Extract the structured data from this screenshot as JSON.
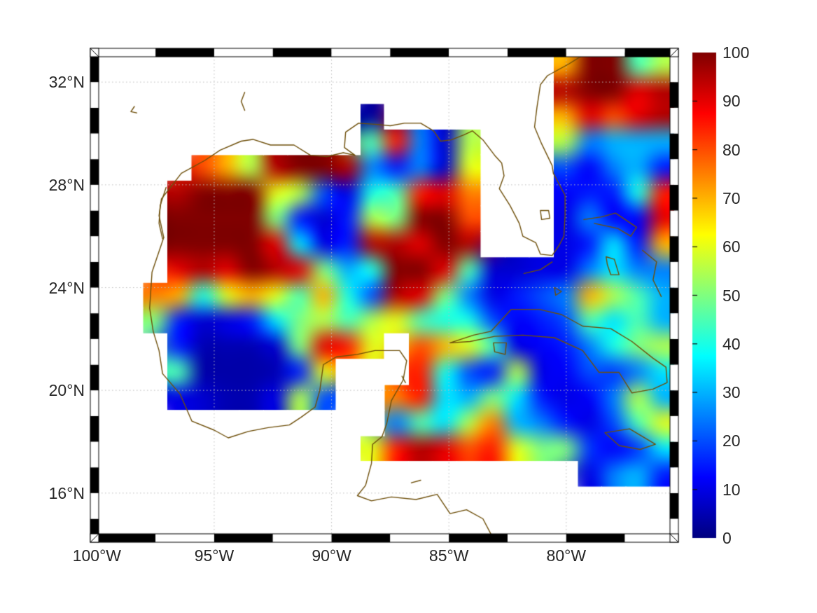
{
  "figure": {
    "background": "#ffffff",
    "axes": {
      "lon_min": -100.1,
      "lon_max": -75.4,
      "lat_min": 14.25,
      "lat_max": 33.15,
      "x_ticks": [
        {
          "value": -100,
          "label": "100°W"
        },
        {
          "value": -95,
          "label": "95°W"
        },
        {
          "value": -90,
          "label": "90°W"
        },
        {
          "value": -85,
          "label": "85°W"
        },
        {
          "value": -80,
          "label": "80°W"
        }
      ],
      "y_ticks": [
        {
          "value": 16,
          "label": "16°N"
        },
        {
          "value": 20,
          "label": "20°N"
        },
        {
          "value": 24,
          "label": "24°N"
        },
        {
          "value": 28,
          "label": "28°N"
        },
        {
          "value": 32,
          "label": "32°N"
        }
      ],
      "grid_lons": [
        -95,
        -90,
        -85,
        -80
      ],
      "grid_lats": [
        16,
        20,
        24,
        28,
        32
      ],
      "grid_color": "#bdbdbd",
      "tick_font_color": "#262626",
      "frame_black": "#000000",
      "frame_white": "#ffffff",
      "frame_lon_period_deg": 2.5,
      "frame_lat_period_deg": 1
    },
    "colorbar": {
      "min": 0,
      "max": 100,
      "tick_values": [
        0,
        10,
        20,
        30,
        40,
        50,
        60,
        70,
        80,
        90,
        100
      ],
      "tick_labels": [
        "0",
        "10",
        "20",
        "30",
        "40",
        "50",
        "60",
        "70",
        "80",
        "90",
        "100"
      ],
      "colormap": "jet",
      "stops": [
        "#000080",
        "#0000ff",
        "#00ffff",
        "#ffff00",
        "#ff0000",
        "#800000"
      ]
    },
    "coast_color": "#6e4f0a"
  },
  "chart_data": {
    "type": "heatmap",
    "title": "",
    "colormap": "jet",
    "vmin": 0,
    "vmax": 100,
    "legend_position": "right-colorbar",
    "grid": {
      "lon_west": -100.1,
      "lon_east": -75.4,
      "lat_north": 33.15,
      "lat_south": 14.25,
      "n_cols": 24,
      "n_rows": 19,
      "masked_value": null
    },
    "values": [
      [
        null,
        null,
        null,
        null,
        null,
        null,
        null,
        null,
        null,
        null,
        null,
        null,
        null,
        null,
        null,
        null,
        null,
        null,
        null,
        70,
        100,
        100,
        45,
        55
      ],
      [
        null,
        null,
        null,
        null,
        null,
        null,
        null,
        null,
        null,
        null,
        null,
        null,
        null,
        null,
        null,
        null,
        null,
        null,
        null,
        95,
        100,
        100,
        90,
        95
      ],
      [
        null,
        null,
        null,
        null,
        null,
        null,
        null,
        null,
        null,
        null,
        null,
        3,
        null,
        null,
        null,
        null,
        null,
        null,
        null,
        70,
        90,
        80,
        90,
        95
      ],
      [
        null,
        null,
        null,
        null,
        null,
        null,
        null,
        null,
        null,
        null,
        null,
        45,
        85,
        25,
        8,
        55,
        null,
        null,
        null,
        55,
        25,
        30,
        30,
        30
      ],
      [
        null,
        null,
        null,
        null,
        80,
        70,
        55,
        95,
        100,
        100,
        95,
        25,
        15,
        25,
        8,
        60,
        null,
        null,
        null,
        20,
        12,
        25,
        30,
        15
      ],
      [
        null,
        null,
        null,
        95,
        100,
        100,
        100,
        60,
        55,
        20,
        10,
        40,
        45,
        85,
        90,
        75,
        null,
        null,
        null,
        12,
        15,
        15,
        40,
        85
      ],
      [
        null,
        null,
        null,
        100,
        100,
        100,
        100,
        50,
        15,
        8,
        15,
        55,
        50,
        100,
        100,
        80,
        null,
        null,
        null,
        10,
        25,
        12,
        12,
        90
      ],
      [
        null,
        null,
        null,
        100,
        100,
        100,
        100,
        90,
        35,
        10,
        15,
        95,
        95,
        90,
        100,
        95,
        null,
        null,
        null,
        10,
        15,
        35,
        15,
        70
      ],
      [
        null,
        null,
        null,
        90,
        95,
        90,
        100,
        95,
        90,
        50,
        30,
        40,
        100,
        100,
        90,
        45,
        8,
        8,
        10,
        10,
        25,
        35,
        25,
        25
      ],
      [
        null,
        null,
        75,
        70,
        40,
        60,
        70,
        60,
        45,
        70,
        40,
        20,
        95,
        90,
        50,
        25,
        10,
        15,
        20,
        25,
        70,
        55,
        45,
        30
      ],
      [
        null,
        null,
        50,
        15,
        8,
        10,
        15,
        35,
        50,
        55,
        45,
        55,
        60,
        45,
        40,
        40,
        20,
        12,
        15,
        20,
        45,
        35,
        45,
        30
      ],
      [
        null,
        null,
        null,
        15,
        5,
        5,
        5,
        8,
        50,
        90,
        85,
        60,
        null,
        80,
        70,
        60,
        45,
        10,
        12,
        15,
        25,
        40,
        50,
        55
      ],
      [
        null,
        null,
        null,
        45,
        4,
        4,
        4,
        5,
        15,
        60,
        null,
        null,
        null,
        85,
        40,
        20,
        15,
        55,
        10,
        12,
        20,
        18,
        25,
        35
      ],
      [
        null,
        null,
        null,
        10,
        8,
        5,
        5,
        10,
        55,
        20,
        null,
        null,
        75,
        85,
        35,
        30,
        50,
        35,
        15,
        10,
        12,
        25,
        55,
        30
      ],
      [
        null,
        null,
        null,
        null,
        null,
        null,
        null,
        null,
        null,
        null,
        null,
        null,
        25,
        45,
        35,
        55,
        75,
        30,
        25,
        15,
        10,
        20,
        45,
        60
      ],
      [
        null,
        null,
        null,
        null,
        null,
        null,
        null,
        null,
        null,
        null,
        null,
        60,
        85,
        95,
        90,
        80,
        85,
        60,
        50,
        50,
        18,
        12,
        18,
        35
      ],
      [
        null,
        null,
        null,
        null,
        null,
        null,
        null,
        null,
        null,
        null,
        null,
        null,
        null,
        null,
        null,
        null,
        null,
        null,
        null,
        null,
        10,
        25,
        30,
        15
      ],
      [
        null,
        null,
        null,
        null,
        null,
        null,
        null,
        null,
        null,
        null,
        null,
        null,
        null,
        null,
        null,
        null,
        null,
        null,
        null,
        null,
        null,
        null,
        null,
        null
      ],
      [
        null,
        null,
        null,
        null,
        null,
        null,
        null,
        null,
        null,
        null,
        null,
        null,
        null,
        null,
        null,
        null,
        null,
        null,
        null,
        null,
        null,
        null,
        null,
        null
      ]
    ],
    "coastlines": [
      [
        [
          -97.15,
          25.95
        ],
        [
          -97.35,
          26.8
        ],
        [
          -97.25,
          27.45
        ],
        [
          -96.4,
          28.45
        ],
        [
          -95.4,
          28.95
        ],
        [
          -94.75,
          29.35
        ],
        [
          -93.85,
          29.7
        ],
        [
          -93.35,
          29.77
        ],
        [
          -92.6,
          29.55
        ],
        [
          -91.6,
          29.55
        ],
        [
          -90.9,
          29.15
        ],
        [
          -90.2,
          29.1
        ],
        [
          -89.5,
          29.25
        ],
        [
          -89.0,
          29.15
        ],
        [
          -89.45,
          29.45
        ],
        [
          -89.4,
          30.05
        ],
        [
          -88.85,
          30.4
        ],
        [
          -88.05,
          30.35
        ],
        [
          -87.5,
          30.3
        ],
        [
          -86.9,
          30.4
        ],
        [
          -86.2,
          30.4
        ],
        [
          -85.65,
          30.1
        ],
        [
          -85.35,
          29.7
        ],
        [
          -84.9,
          29.75
        ],
        [
          -84.35,
          29.95
        ],
        [
          -84.0,
          30.1
        ],
        [
          -83.55,
          29.75
        ],
        [
          -83.05,
          29.15
        ],
        [
          -82.75,
          28.85
        ],
        [
          -82.65,
          28.35
        ],
        [
          -82.85,
          27.85
        ],
        [
          -82.4,
          27.2
        ],
        [
          -82.0,
          26.5
        ],
        [
          -81.85,
          26.0
        ],
        [
          -81.3,
          25.75
        ],
        [
          -81.1,
          25.3
        ],
        [
          -80.6,
          25.25
        ],
        [
          -80.3,
          25.65
        ],
        [
          -80.1,
          26.0
        ],
        [
          -80.05,
          26.8
        ],
        [
          -80.05,
          27.6
        ],
        [
          -80.55,
          28.45
        ],
        [
          -80.6,
          28.75
        ],
        [
          -81.05,
          29.6
        ],
        [
          -81.35,
          30.25
        ],
        [
          -81.25,
          31.0
        ],
        [
          -81.1,
          31.9
        ],
        [
          -80.8,
          32.25
        ],
        [
          -79.9,
          32.7
        ],
        [
          -79.2,
          33.1
        ]
      ],
      [
        [
          -97.15,
          25.95
        ],
        [
          -97.65,
          24.6
        ],
        [
          -97.75,
          23.2
        ],
        [
          -97.6,
          22.3
        ],
        [
          -97.35,
          21.55
        ],
        [
          -97.2,
          20.65
        ],
        [
          -96.45,
          19.85
        ],
        [
          -95.95,
          18.8
        ],
        [
          -95.0,
          18.45
        ],
        [
          -94.4,
          18.15
        ],
        [
          -93.55,
          18.4
        ],
        [
          -92.7,
          18.55
        ],
        [
          -91.8,
          18.65
        ],
        [
          -91.3,
          18.95
        ],
        [
          -90.7,
          19.35
        ],
        [
          -90.5,
          20.0
        ],
        [
          -90.35,
          21.0
        ],
        [
          -89.8,
          21.3
        ],
        [
          -88.9,
          21.4
        ],
        [
          -88.15,
          21.55
        ],
        [
          -87.1,
          21.55
        ],
        [
          -86.8,
          21.15
        ],
        [
          -86.95,
          20.4
        ],
        [
          -87.45,
          19.6
        ],
        [
          -87.65,
          18.7
        ],
        [
          -87.85,
          18.2
        ],
        [
          -88.25,
          17.9
        ],
        [
          -88.3,
          17.15
        ],
        [
          -88.55,
          16.3
        ],
        [
          -88.9,
          15.9
        ],
        [
          -88.3,
          15.7
        ],
        [
          -87.45,
          15.85
        ],
        [
          -86.4,
          15.75
        ],
        [
          -85.5,
          15.95
        ],
        [
          -84.95,
          15.2
        ],
        [
          -84.25,
          15.35
        ],
        [
          -83.55,
          15.0
        ],
        [
          -83.15,
          14.3
        ]
      ],
      [
        [
          -84.95,
          21.85
        ],
        [
          -84.45,
          22.0
        ],
        [
          -83.95,
          22.15
        ],
        [
          -83.2,
          22.3
        ],
        [
          -82.35,
          23.15
        ],
        [
          -81.15,
          23.15
        ],
        [
          -80.2,
          22.95
        ],
        [
          -79.3,
          22.5
        ],
        [
          -78.1,
          22.4
        ],
        [
          -77.2,
          21.9
        ],
        [
          -76.3,
          21.25
        ],
        [
          -75.75,
          20.9
        ],
        [
          -75.7,
          20.3
        ],
        [
          -76.3,
          20.05
        ],
        [
          -77.2,
          19.9
        ],
        [
          -77.75,
          20.7
        ],
        [
          -78.6,
          20.7
        ],
        [
          -79.3,
          21.55
        ],
        [
          -80.5,
          22.05
        ],
        [
          -81.85,
          22.15
        ],
        [
          -83.05,
          22.1
        ],
        [
          -84.1,
          21.9
        ],
        [
          -84.95,
          21.85
        ]
      ],
      [
        [
          -83.1,
          21.85
        ],
        [
          -82.55,
          21.85
        ],
        [
          -82.6,
          21.4
        ],
        [
          -83.05,
          21.5
        ],
        [
          -83.1,
          21.85
        ]
      ],
      [
        [
          -78.35,
          18.35
        ],
        [
          -77.3,
          18.5
        ],
        [
          -76.2,
          17.9
        ],
        [
          -76.85,
          17.7
        ],
        [
          -77.75,
          17.85
        ],
        [
          -78.35,
          18.35
        ]
      ],
      [
        [
          -79.25,
          26.65
        ],
        [
          -78.5,
          26.75
        ],
        [
          -77.9,
          26.9
        ],
        [
          -77.0,
          26.35
        ],
        [
          -77.25,
          26.0
        ],
        [
          -77.8,
          26.3
        ],
        [
          -78.8,
          26.5
        ]
      ],
      [
        [
          -78.3,
          25.2
        ],
        [
          -77.95,
          25.1
        ],
        [
          -77.75,
          24.5
        ],
        [
          -78.1,
          24.5
        ],
        [
          -78.25,
          24.9
        ],
        [
          -78.3,
          25.2
        ]
      ],
      [
        [
          -76.75,
          25.45
        ],
        [
          -76.15,
          25.0
        ],
        [
          -76.3,
          24.3
        ],
        [
          -75.95,
          23.65
        ]
      ],
      [
        [
          -80.6,
          25.0
        ],
        [
          -81.1,
          24.7
        ],
        [
          -81.8,
          24.55
        ]
      ],
      [
        [
          -81.1,
          27.0
        ],
        [
          -80.75,
          27.0
        ],
        [
          -80.7,
          26.7
        ],
        [
          -81.05,
          26.65
        ],
        [
          -81.1,
          27.0
        ]
      ],
      [
        [
          -93.7,
          31.6
        ],
        [
          -93.85,
          31.25
        ],
        [
          -93.7,
          30.9
        ]
      ],
      [
        [
          -98.4,
          31.05
        ],
        [
          -98.55,
          30.85
        ],
        [
          -98.3,
          30.8
        ]
      ],
      [
        [
          -97.05,
          27.9
        ],
        [
          -97.3,
          27.2
        ],
        [
          -97.35,
          26.5
        ],
        [
          -97.2,
          25.9
        ]
      ],
      [
        [
          -87.0,
          20.55
        ],
        [
          -86.85,
          20.3
        ]
      ],
      [
        [
          -86.6,
          16.4
        ],
        [
          -86.2,
          16.5
        ]
      ],
      [
        [
          -80.5,
          24.0
        ],
        [
          -80.2,
          23.85
        ],
        [
          -80.45,
          23.7
        ],
        [
          -80.5,
          24.0
        ]
      ]
    ]
  }
}
